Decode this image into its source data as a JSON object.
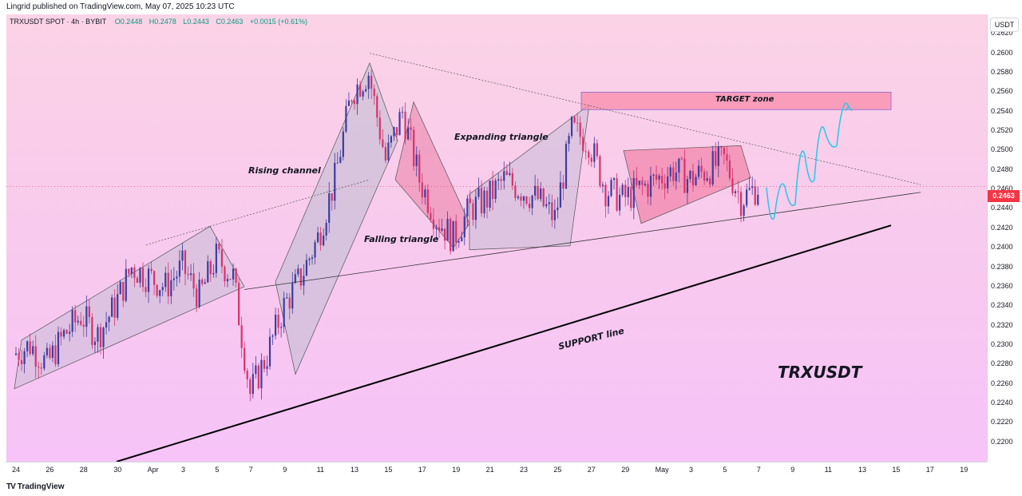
{
  "header": {
    "published": "Lingrid published on TradingView.com, May 07, 2025 10:23 UTC"
  },
  "legend": {
    "symbol": "TRXUSDT SPOT · 4h · BYBIT",
    "open": "O0.2448",
    "high": "H0.2478",
    "low": "L0.2443",
    "close": "C0.2463",
    "change": "+0.0015 (+0.61%)"
  },
  "price_axis": {
    "currency": "USDT",
    "last_price": "0.2463",
    "ticks": [
      "0.2620",
      "0.2600",
      "0.2580",
      "0.2560",
      "0.2540",
      "0.2520",
      "0.2500",
      "0.2480",
      "0.2460",
      "0.2440",
      "0.2420",
      "0.2400",
      "0.2380",
      "0.2360",
      "0.2340",
      "0.2320",
      "0.2300",
      "0.2280",
      "0.2260",
      "0.2240",
      "0.2220",
      "0.2200"
    ]
  },
  "time_axis": {
    "ticks": [
      "24",
      "26",
      "28",
      "30",
      "Apr",
      "3",
      "5",
      "7",
      "9",
      "11",
      "13",
      "15",
      "17",
      "19",
      "21",
      "23",
      "25",
      "27",
      "29",
      "May",
      "3",
      "5",
      "7",
      "9",
      "11",
      "13",
      "15",
      "17",
      "19"
    ]
  },
  "annotations": {
    "rising_channel": "Rising channel",
    "falling_triangle": "Falling triangle",
    "expanding_triangle": "Expanding triangle",
    "target_zone": "TARGET zone",
    "support_line": "SUPPORT line",
    "symbol": "TRXUSDT"
  },
  "footer": {
    "brand": "TradingView"
  },
  "colors": {
    "up": "#3d3d9e",
    "down": "#d6336c",
    "accent_cyan": "#30c8e8",
    "target_fill": "#f48aa8",
    "last_price": "#f23645"
  },
  "chart_data": {
    "type": "line",
    "title": "",
    "xlabel": "",
    "ylabel": "",
    "x": [
      "Mar 24",
      "Mar 25",
      "Mar 26",
      "Mar 27",
      "Mar 28",
      "Mar 29",
      "Mar 30",
      "Mar 31",
      "Apr 1",
      "Apr 2",
      "Apr 3",
      "Apr 4",
      "Apr 5",
      "Apr 6",
      "Apr 7",
      "Apr 8",
      "Apr 9",
      "Apr 10",
      "Apr 11",
      "Apr 12",
      "Apr 13",
      "Apr 14",
      "Apr 15",
      "Apr 16",
      "Apr 17",
      "Apr 18",
      "Apr 19",
      "Apr 20",
      "Apr 21",
      "Apr 22",
      "Apr 23",
      "Apr 24",
      "Apr 25",
      "Apr 26",
      "Apr 27",
      "Apr 28",
      "Apr 29",
      "Apr 30",
      "May 1",
      "May 2",
      "May 3",
      "May 4",
      "May 5",
      "May 6",
      "May 7"
    ],
    "series": [
      {
        "name": "",
        "values": [
          0.229,
          0.23,
          0.228,
          0.231,
          0.233,
          0.231,
          0.234,
          0.238,
          0.237,
          0.236,
          0.238,
          0.235,
          0.239,
          0.237,
          0.225,
          0.229,
          0.234,
          0.237,
          0.241,
          0.247,
          0.256,
          0.258,
          0.249,
          0.254,
          0.247,
          0.243,
          0.241,
          0.244,
          0.245,
          0.247,
          0.246,
          0.245,
          0.243,
          0.252,
          0.251,
          0.246,
          0.245,
          0.246,
          0.247,
          0.248,
          0.247,
          0.248,
          0.249,
          0.245,
          0.2463
        ]
      }
    ],
    "ylim": [
      0.218,
      0.264
    ],
    "grid": false,
    "legend": "none"
  }
}
